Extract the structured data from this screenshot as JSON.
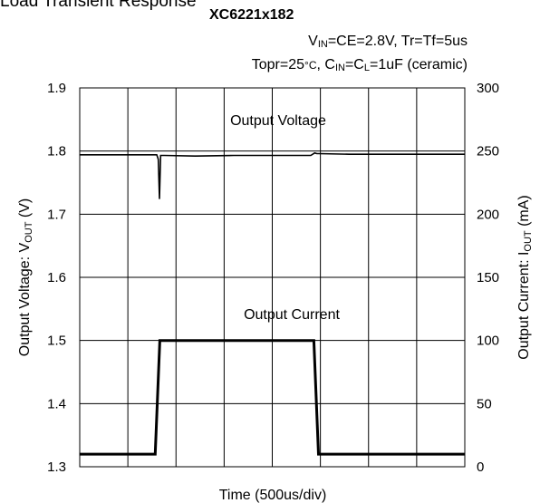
{
  "header": {
    "heading": "Load Transient Response",
    "title": "XC6221x182",
    "conditions_line1_parts": [
      "V",
      "IN",
      "=CE=2.8V, Tr=Tf=5us"
    ],
    "conditions_line2_parts": [
      "Topr=25",
      "°C",
      ", C",
      "IN",
      "=C",
      "L",
      "=1uF (ceramic)"
    ]
  },
  "chart_data": {
    "type": "line",
    "xlabel": "Time (500us/div)",
    "ylabel_left": [
      "Output Voltage: V",
      "OUT",
      " (V)"
    ],
    "ylabel_right": [
      "Output Current: I",
      "OUT",
      " (mA)"
    ],
    "x_range": [
      0,
      5000
    ],
    "x_unit": "us",
    "ylim_left": [
      1.3,
      1.9
    ],
    "yticks_left": [
      "1.9",
      "1.8",
      "1.7",
      "1.6",
      "1.5",
      "1.4",
      "1.3"
    ],
    "ylim_right": [
      0,
      300
    ],
    "yticks_right": [
      "300",
      "250",
      "200",
      "150",
      "100",
      "50",
      "0"
    ],
    "grid": true,
    "annotations": {
      "voltage": "Output Voltage",
      "current": "Output Current"
    },
    "series": [
      {
        "name": "Output Voltage",
        "axis": "left",
        "x": [
          0,
          500,
          1000,
          1020,
          1035,
          1050,
          1100,
          1500,
          2000,
          2500,
          3000,
          3050,
          3080,
          3100,
          3500,
          4000,
          4500,
          5000
        ],
        "y": [
          1.794,
          1.794,
          1.794,
          1.787,
          1.724,
          1.793,
          1.793,
          1.792,
          1.793,
          1.793,
          1.793,
          1.797,
          1.796,
          1.796,
          1.795,
          1.795,
          1.795,
          1.795
        ]
      },
      {
        "name": "Output Current",
        "axis": "right",
        "x": [
          0,
          980,
          1040,
          3040,
          3100,
          5000
        ],
        "y": [
          10,
          10,
          100,
          100,
          10,
          10
        ]
      }
    ]
  },
  "style": {
    "line_color": "#000000",
    "grid_color": "#000000",
    "background": "#ffffff"
  }
}
